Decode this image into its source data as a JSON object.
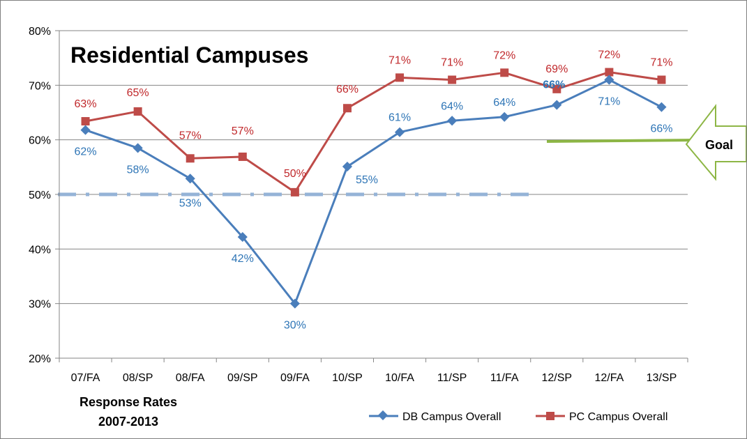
{
  "chart_data": {
    "type": "line",
    "title": "Residential Campuses",
    "subtitle_lines": [
      "Response Rates",
      "2007-2013"
    ],
    "categories": [
      "07/FA",
      "08/SP",
      "08/FA",
      "09/SP",
      "09/FA",
      "10/SP",
      "10/FA",
      "11/SP",
      "11/FA",
      "12/SP",
      "12/FA",
      "13/SP"
    ],
    "ylim": [
      20,
      80
    ],
    "yticks": [
      "20%",
      "30%",
      "40%",
      "50%",
      "60%",
      "70%",
      "80%"
    ],
    "grid": true,
    "legend_position": "bottom-right",
    "series": [
      {
        "name": "DB Campus Overall",
        "color": "#4a7ebb",
        "label_color": "#2e75b6",
        "marker": "diamond",
        "values": [
          61.8,
          58.5,
          52.9,
          42.2,
          30.0,
          55.1,
          61.4,
          63.5,
          64.2,
          66.4,
          71.0,
          66.0
        ],
        "labels": [
          "62%",
          "58%",
          "53%",
          "42%",
          "30%",
          "55%",
          "61%",
          "64%",
          "64%",
          "66%",
          "71%",
          "66%"
        ]
      },
      {
        "name": "PC Campus Overall",
        "color": "#be4b48",
        "label_color": "#c0282b",
        "marker": "square",
        "values": [
          63.4,
          65.2,
          56.6,
          56.9,
          50.4,
          65.8,
          71.4,
          71.0,
          72.3,
          69.3,
          72.4,
          71.0
        ],
        "labels": [
          "63%",
          "65%",
          "57%",
          "57%",
          "50%",
          "66%",
          "71%",
          "71%",
          "72%",
          "69%",
          "72%",
          "71%"
        ]
      }
    ],
    "reference_line": {
      "value": 50,
      "color": "#95b3d7",
      "style": "dash-dot"
    },
    "goal": {
      "label": "Goal",
      "value": 60,
      "color": "#8db645"
    }
  }
}
